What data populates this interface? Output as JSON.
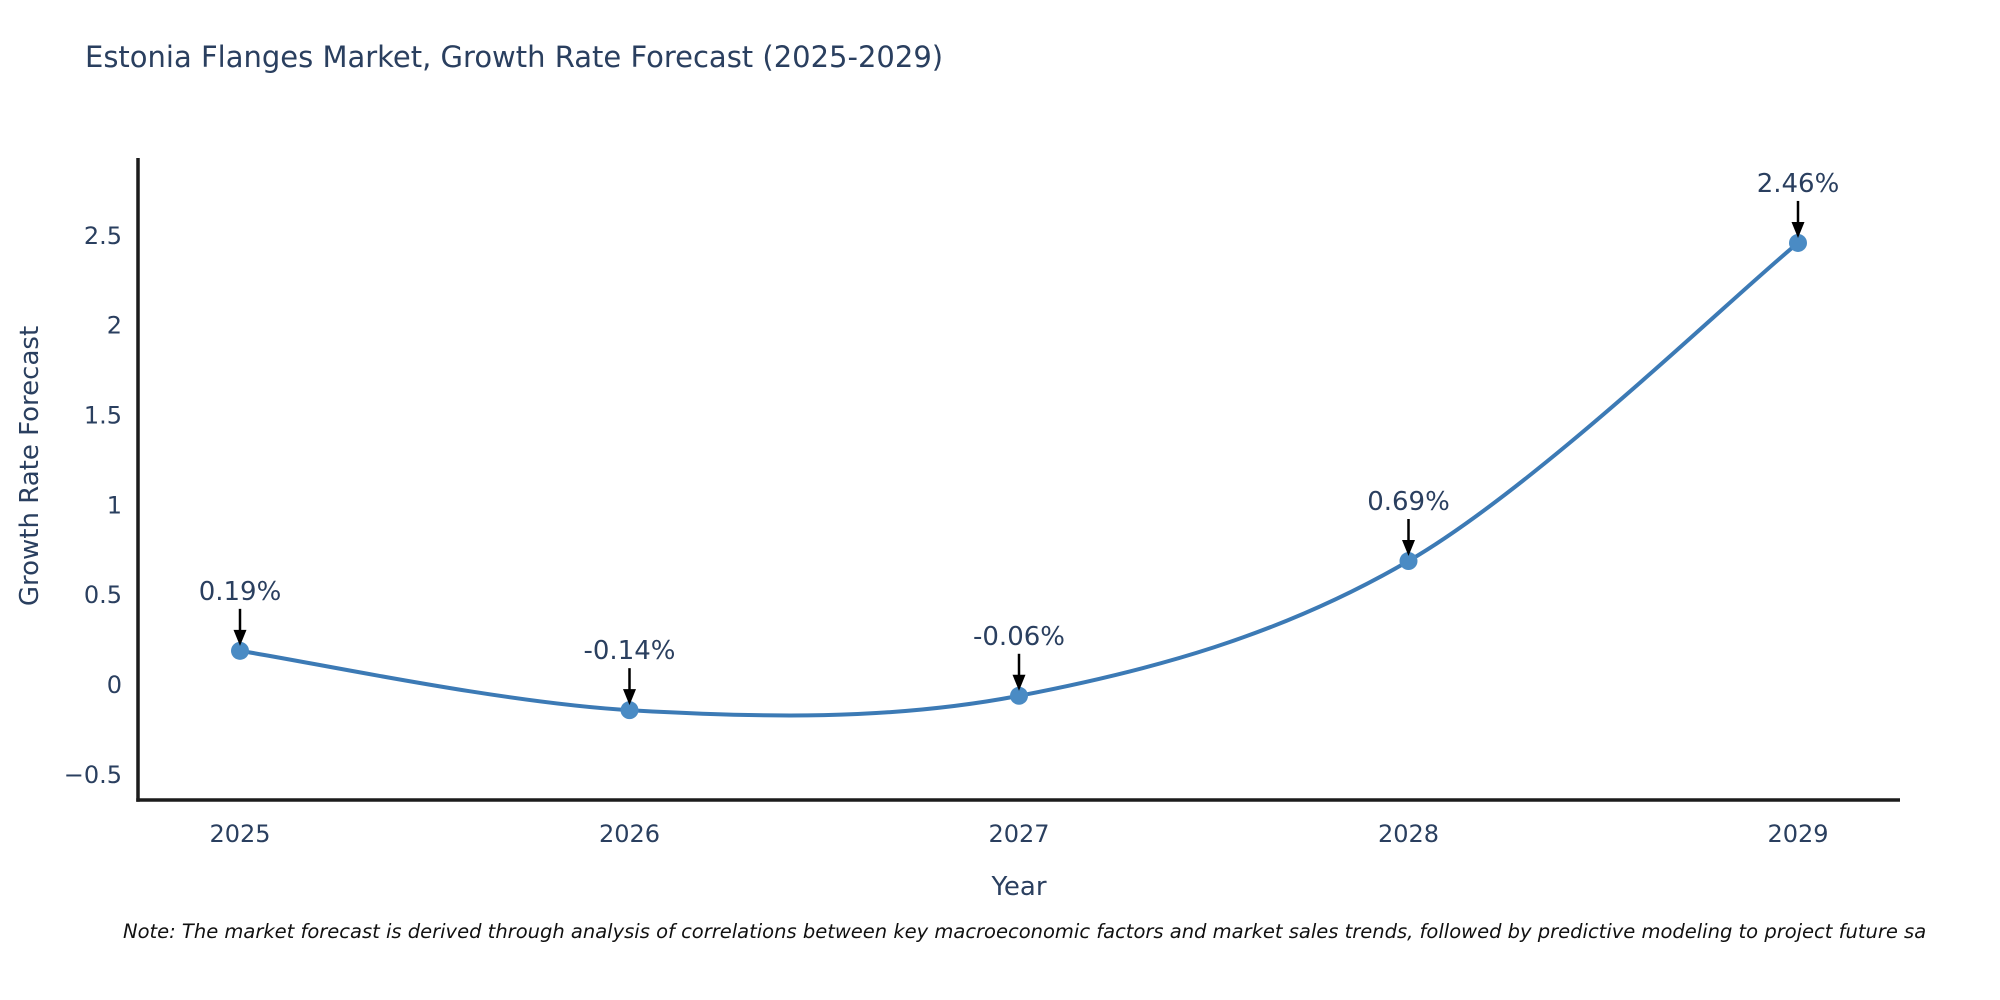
{
  "title": "Estonia Flanges Market, Growth Rate Forecast (2025-2029)",
  "note": "Note: The market forecast is derived through analysis of correlations between key macroeconomic factors and market sales trends, followed by predictive modeling to project future sa",
  "chart_data": {
    "type": "line",
    "title": "Estonia Flanges Market, Growth Rate Forecast (2025-2029)",
    "xlabel": "Year",
    "ylabel": "Growth Rate Forecast",
    "x": [
      "2025",
      "2026",
      "2027",
      "2028",
      "2029"
    ],
    "values": [
      0.19,
      -0.14,
      -0.06,
      0.69,
      2.46
    ],
    "point_labels": [
      "0.19%",
      "-0.14%",
      "-0.06%",
      "0.69%",
      "2.46%"
    ],
    "y_ticks": [
      {
        "v": 2.5,
        "label": "2.5"
      },
      {
        "v": 2,
        "label": "2"
      },
      {
        "v": 1.5,
        "label": "1.5"
      },
      {
        "v": 1,
        "label": "1"
      },
      {
        "v": 0.5,
        "label": "0.5"
      },
      {
        "v": 0,
        "label": "0"
      },
      {
        "v": -0.5,
        "label": "−0.5"
      }
    ],
    "ylim": [
      -0.64,
      2.93
    ],
    "line_shape": "spline",
    "grid": false,
    "legend": "none",
    "colors": {
      "line": "#3c7ab5",
      "marker": "#4a8bc4",
      "axis": "#1c1c1c",
      "text": "#2a3f5f",
      "arrow": "#000000",
      "note": "#111111"
    }
  }
}
